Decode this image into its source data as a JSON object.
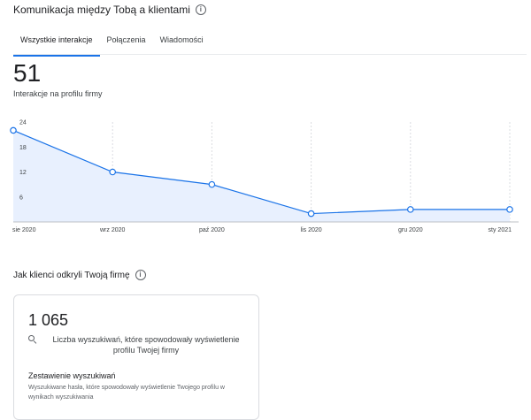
{
  "header": {
    "title": "Komunikacja między Tobą a klientami"
  },
  "tabs": [
    {
      "label": "Wszystkie interakcje",
      "active": true
    },
    {
      "label": "Połączenia",
      "active": false
    },
    {
      "label": "Wiadomości",
      "active": false
    }
  ],
  "metric": {
    "value": "51",
    "label": "Interakcje na profilu firmy"
  },
  "chart_data": {
    "type": "area",
    "categories": [
      "sie 2020",
      "wrz 2020",
      "paź 2020",
      "lis 2020",
      "gru 2020",
      "sty 2021"
    ],
    "values": [
      22,
      12,
      9,
      2,
      3,
      3
    ],
    "yticks": [
      6,
      12,
      18,
      24
    ],
    "ylim": [
      0,
      24
    ],
    "grid": "vertical dashed",
    "colors": {
      "line": "#1a73e8",
      "fill": "#e8f0fe",
      "grid": "#dadce0"
    }
  },
  "discovery": {
    "title": "Jak klienci odkryli Twoją firmę",
    "card": {
      "value": "1 065",
      "description": "Liczba wyszukiwań, które spowodowały wyświetlenie profilu Twojej firmy",
      "subtitle": "Zestawienie wyszukiwań",
      "subdescription": "Wyszukiwane hasła, które spowodowały wyświetlenie Twojego profilu w wynikach wyszukiwania"
    }
  }
}
